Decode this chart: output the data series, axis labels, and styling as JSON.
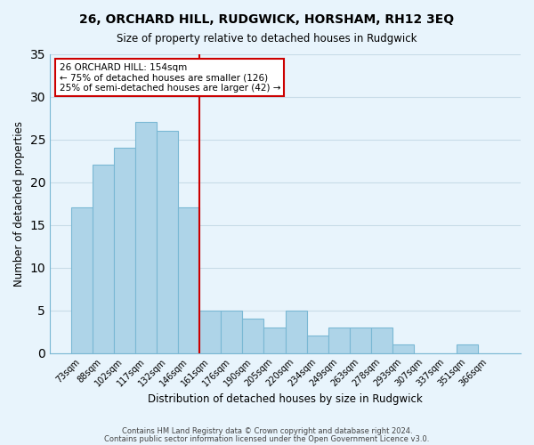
{
  "title": "26, ORCHARD HILL, RUDGWICK, HORSHAM, RH12 3EQ",
  "subtitle": "Size of property relative to detached houses in Rudgwick",
  "xlabel": "Distribution of detached houses by size in Rudgwick",
  "ylabel": "Number of detached properties",
  "footer_line1": "Contains HM Land Registry data © Crown copyright and database right 2024.",
  "footer_line2": "Contains public sector information licensed under the Open Government Licence v3.0.",
  "bins": [
    "73sqm",
    "88sqm",
    "102sqm",
    "117sqm",
    "132sqm",
    "146sqm",
    "161sqm",
    "176sqm",
    "190sqm",
    "205sqm",
    "220sqm",
    "234sqm",
    "249sqm",
    "263sqm",
    "278sqm",
    "293sqm",
    "307sqm",
    "337sqm",
    "351sqm",
    "366sqm"
  ],
  "values": [
    17,
    22,
    24,
    27,
    26,
    17,
    5,
    5,
    4,
    3,
    5,
    2,
    3,
    3,
    3,
    1,
    0,
    0,
    1,
    0
  ],
  "bar_color": "#aed4e8",
  "bar_edge_color": "#7ab8d4",
  "vline_x_index": 5.5,
  "vline_color": "#cc0000",
  "annotation_text": "26 ORCHARD HILL: 154sqm\n← 75% of detached houses are smaller (126)\n25% of semi-detached houses are larger (42) →",
  "annotation_box_color": "#ffffff",
  "annotation_box_edge_color": "#cc0000",
  "ylim": [
    0,
    35
  ],
  "yticks": [
    0,
    5,
    10,
    15,
    20,
    25,
    30,
    35
  ],
  "grid_color": "#c8dce8",
  "bg_color": "#e8f4fc"
}
